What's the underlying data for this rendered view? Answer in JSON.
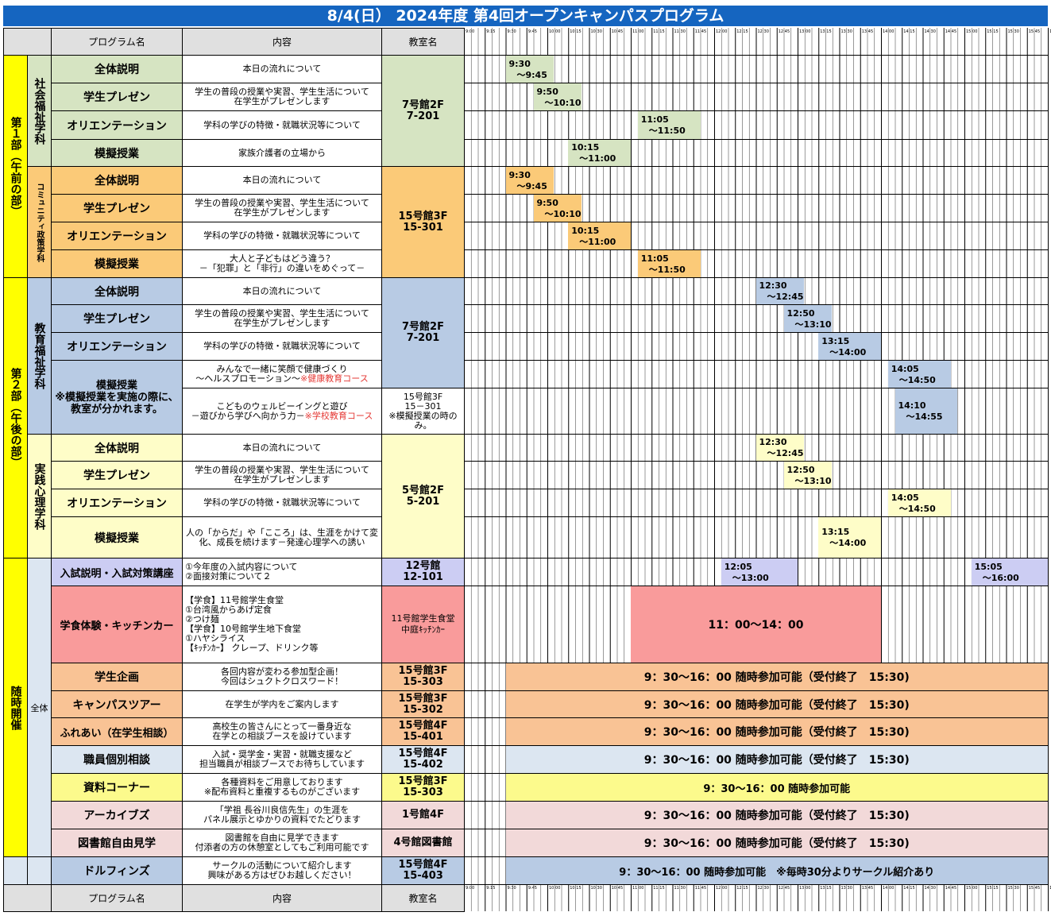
{
  "title": "8/4(日） 2024年度 第4回オープンキャンパスプログラム",
  "headers": {
    "program": "プログラム名",
    "content": "内容",
    "room": "教室名"
  },
  "time_ticks": [
    "9:00",
    "9:15",
    "9:30",
    "9:45",
    "10:00",
    "10:15",
    "10:30",
    "10:45",
    "11:00",
    "11:15",
    "11:30",
    "11:45",
    "12:00",
    "12:15",
    "12:30",
    "12:45",
    "13:00",
    "13:15",
    "13:30",
    "13:45",
    "14:00",
    "14:15",
    "14:30",
    "14:45",
    "15:00",
    "15:15",
    "15:30",
    "15:45",
    "16:00"
  ],
  "parts": {
    "part1": "第１部（午前の部）",
    "part2": "第２部（午後の部）",
    "anytime": "随時開催"
  },
  "depts": {
    "social": "社会福祉学科",
    "community": "コミュニティ政策学科",
    "education": "教育福祉学科",
    "psych": "実践心理学科",
    "all": "全体"
  },
  "programs": {
    "overview": "全体説明",
    "presen": "学生プレゼン",
    "orient": "オリエンテーション",
    "mock": "模擬授業",
    "mock_edu": "模擬授業\n※模擬授業を実施の際に、教室が分かれます。",
    "admission": "入試説明・入試対策講座",
    "cafeteria": "学食体験・キッチンカー",
    "student_plan": "学生企画",
    "tour": "キャンパスツアー",
    "fureai": "ふれあい（在学生相談）",
    "staff": "職員個別相談",
    "materials": "資料コーナー",
    "archives": "アーカイブズ",
    "library": "図書館自由見学",
    "dolphins": "ドルフィンズ"
  },
  "desc": {
    "overview": "本日の流れについて",
    "presen": "学生の普段の授業や実習、学生生活について\n在学生がプレゼンします",
    "orient": "学科の学びの特徴・就職状況等について",
    "mock_social": "家族介護者の立場から",
    "mock_community": "大人と子どもはどう違う？\n－「犯罪」と「非行」の違いをめぐって－",
    "mock_edu1": "みんなで一緒に笑顔で健康づくり\n～ヘルスプロモーション～",
    "mock_edu1_note": "※健康教育コース",
    "mock_edu2": "こどものウェルビーイングと遊び\n－遊びから学びへ向かう力－",
    "mock_edu2_note": "※学校教育コース",
    "mock_psych": "人の「からだ」や「こころ」は、生涯をかけて変化、成長を続けます－発達心理学への誘い",
    "admission": "①今年度の入試内容について\n②面接対策について２",
    "cafeteria": "【学食】11号館学生食堂\n①台湾風からあげ定食\n②つけ麺\n【学食】10号館学生地下食堂\n①ハヤシライス\n【ｷｯﾁﾝｶｰ】 クレープ、ドリンク等",
    "student_plan": "各回内容が変わる参加型企画！\n今回はシュクトクロスワード！",
    "tour": "在学生が学内をご案内します",
    "fureai": "高校生の皆さんにとって一番身近な\n在学との相談ブースを設けています",
    "staff": "入試・奨学金・実習・就職支援など\n担当職員が相談ブースでお待ちしています",
    "materials": "各種資料をご用意しております\n※配布資料と重複するものがございます",
    "archives": "「学祖 長谷川良信先生」の生涯を\nパネル展示とゆかりの資料でたどります",
    "library": "図書館を自由に見学できます\n付添者の方の休憩室としてもご利用可能です",
    "dolphins": "サークルの活動について紹介します\n興味がある方はぜひお越しください！"
  },
  "rooms": {
    "social": "7号館2F\n7-201",
    "community": "15号館3F\n15-301",
    "education": "7号館2F\n7-201",
    "edu_split": "15号館3F\n15－301\n※模擬授業の時のみ。",
    "psych": "5号館2F\n5-201",
    "admission": "12号館\n12-101",
    "cafeteria": "11号館学生食堂\n中庭ｷｯﾁﾝｶｰ",
    "student_plan": "15号館3F\n15-303",
    "tour": "15号館3F\n15-302",
    "fureai": "15号館4F\n15-401",
    "staff": "15号館4F\n15-402",
    "materials": "15号館3F\n15-303",
    "archives": "1号館4F",
    "library": "4号館図書館",
    "dolphins": "15号館4F\n15-403"
  },
  "schedule": [
    {
      "row": "s1",
      "start": "9:30",
      "end": "～9:45"
    },
    {
      "row": "s2",
      "start": "9:50",
      "end": "～10:10"
    },
    {
      "row": "s3",
      "start": "11:05",
      "end": "～11:50"
    },
    {
      "row": "s4",
      "start": "10:15",
      "end": "～11:00"
    },
    {
      "row": "c1",
      "start": "9:30",
      "end": "～9:45"
    },
    {
      "row": "c2",
      "start": "9:50",
      "end": "～10:10"
    },
    {
      "row": "c3",
      "start": "10:15",
      "end": "～11:00"
    },
    {
      "row": "c4",
      "start": "11:05",
      "end": "～11:50"
    },
    {
      "row": "e1",
      "start": "12:30",
      "end": "～12:45"
    },
    {
      "row": "e2",
      "start": "12:50",
      "end": "～13:10"
    },
    {
      "row": "e3",
      "start": "13:15",
      "end": "～14:00"
    },
    {
      "row": "e4",
      "start": "14:05",
      "end": "～14:50"
    },
    {
      "row": "e5",
      "start": "14:10",
      "end": "～14:55"
    },
    {
      "row": "p1",
      "start": "12:30",
      "end": "～12:45"
    },
    {
      "row": "p2",
      "start": "12:50",
      "end": "～13:10"
    },
    {
      "row": "p3",
      "start": "14:05",
      "end": "～14:50"
    },
    {
      "row": "p4",
      "start": "13:15",
      "end": "～14:00"
    },
    {
      "row": "a1",
      "start": "12:05",
      "end": "～13:00"
    },
    {
      "row": "a2",
      "start": "15:05",
      "end": "～16:00"
    }
  ],
  "wide_bars": {
    "cafeteria": "11：00～14：00",
    "student_plan": "9：30～16：00 随時参加可能（受付終了　15:30)",
    "tour": "9：30～16：00 随時参加可能（受付終了　15:30)",
    "fureai": "9：30～16：00 随時参加可能（受付終了　15:30)",
    "staff": "9：30～16：00 随時参加可能（受付終了　15:30)",
    "materials": "9：30～16：00 随時参加可能",
    "archives": "9：30～16：00 随時参加可能（受付終了　15:30)",
    "library": "9：30～16：00 随時参加可能（受付終了　15:30)",
    "dolphins": "9：30～16：00 随時参加可能　※毎時30分よりサークル紹介あり"
  },
  "colors": {
    "title": "#1565c0",
    "green": "#d6e4c2",
    "orange": "#fbca78",
    "blue": "#b8cbe4",
    "yellow": "#fefdc8",
    "lavender": "#cccdf3",
    "red": "#f99b9b",
    "peach": "#f9c395",
    "lightblue": "#dce6f1",
    "lightyellow": "#fcfa8c",
    "pink": "#f2d9d9",
    "side": "#dce6f1",
    "partyellow": "#ffff00",
    "header": "#e0e0e0"
  }
}
